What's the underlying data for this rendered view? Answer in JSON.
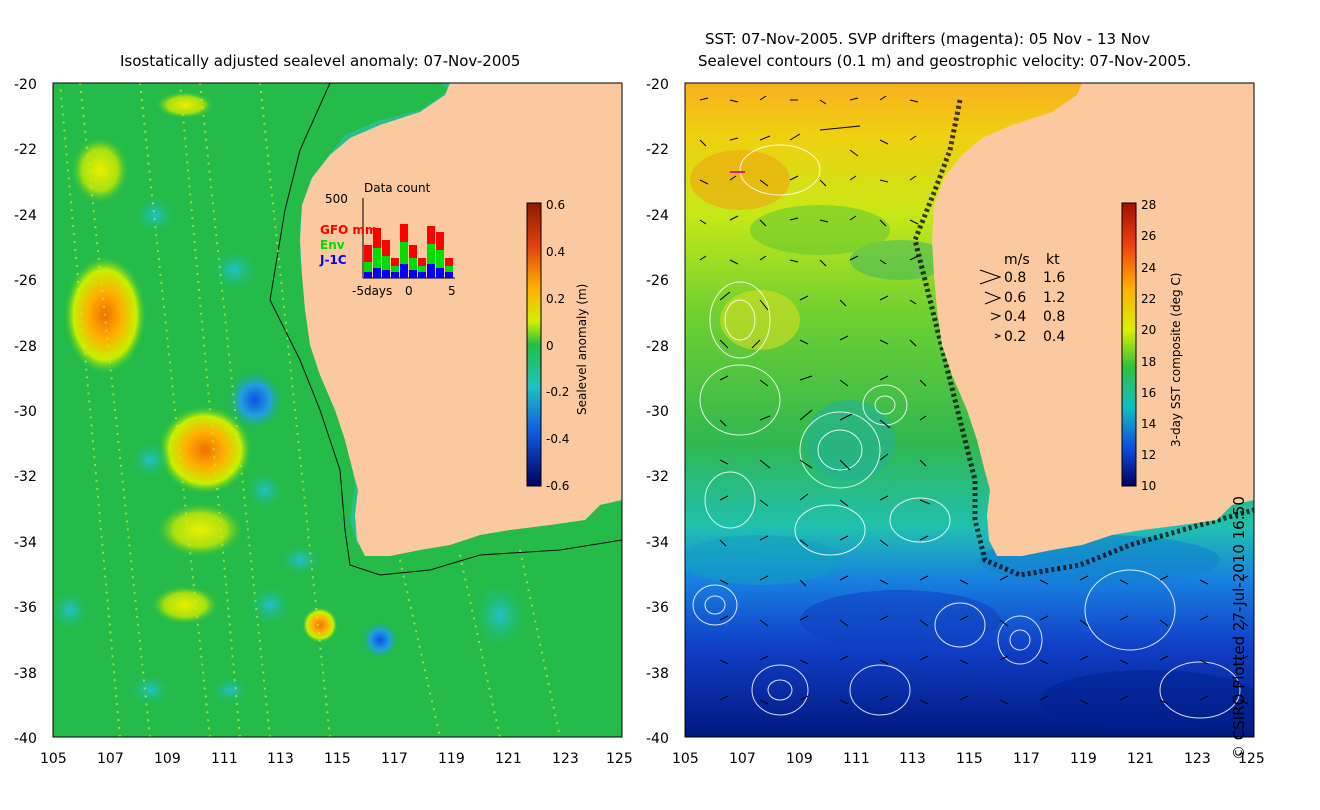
{
  "left_panel": {
    "title": "Isostatically adjusted sealevel anomaly: 07-Nov-2005",
    "y_ticks": [
      "-20",
      "-22",
      "-24",
      "-26",
      "-28",
      "-30",
      "-32",
      "-34",
      "-36",
      "-38",
      "-40"
    ],
    "x_ticks": [
      "105",
      "107",
      "109",
      "111",
      "113",
      "115",
      "117",
      "119",
      "121",
      "123",
      "125"
    ],
    "colorbar": {
      "label": "Sealevel anomaly (m)",
      "ticks": [
        "0.6",
        "0.4",
        "0.2",
        "0",
        "-0.2",
        "-0.4",
        "-0.6"
      ]
    },
    "inset": {
      "title": "Data count",
      "y_max_label": "500",
      "x_labels": [
        "-5days",
        "0",
        "5"
      ],
      "legend": [
        {
          "label": "GFO mm",
          "color": "#ff0000"
        },
        {
          "label": "Env",
          "color": "#00dd00"
        },
        {
          "label": "J-1C",
          "color": "#0000ff"
        }
      ]
    }
  },
  "right_panel": {
    "title_line1": "SST: 07-Nov-2005. SVP drifters (magenta): 05 Nov - 13 Nov",
    "title_line2": "Sealevel contours (0.1 m) and geostrophic velocity: 07-Nov-2005.",
    "y_ticks": [
      "-20",
      "-22",
      "-24",
      "-26",
      "-28",
      "-30",
      "-32",
      "-34",
      "-36",
      "-38",
      "-40"
    ],
    "x_ticks": [
      "105",
      "107",
      "109",
      "111",
      "113",
      "115",
      "117",
      "119",
      "121",
      "123",
      "125"
    ],
    "colorbar": {
      "label": "3-day SST composite (deg C)",
      "ticks": [
        "28",
        "26",
        "24",
        "22",
        "20",
        "18",
        "16",
        "14",
        "12",
        "10"
      ]
    },
    "velocity_legend": {
      "header_ms": "m/s",
      "header_kt": "kt",
      "rows": [
        {
          "ms": "0.8",
          "kt": "1.6"
        },
        {
          "ms": "0.6",
          "kt": "1.2"
        },
        {
          "ms": "0.4",
          "kt": "0.8"
        },
        {
          "ms": "0.2",
          "kt": "0.4"
        }
      ]
    }
  },
  "credit": "© CSIRO Plotted 27-Jul-2010 16:50",
  "colors": {
    "land": "#fbc9a0",
    "ocean_green": "#22bb44",
    "contour": "#ffffff"
  }
}
